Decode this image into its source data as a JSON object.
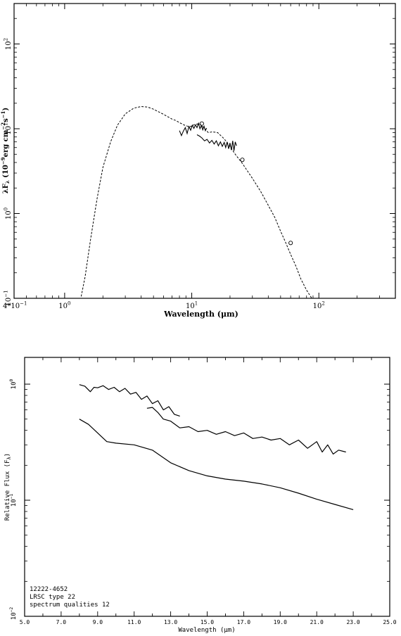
{
  "chart_data": [
    {
      "type": "line",
      "xlabel": "Wavelength (μm)",
      "ylabel": "λF",
      "ylabel_sub": "λ",
      "ylabel_rest": "(10",
      "ylabel_exp": "−9",
      "ylabel_rest2": "erg cm",
      "ylabel_exp2": "−2",
      "ylabel_rest3": "s",
      "ylabel_exp3": "−1",
      "ylabel_close": ")",
      "x_scale": "log",
      "y_scale": "log",
      "xlim": [
        0.4,
        400
      ],
      "ylim": [
        0.1,
        300
      ],
      "x_ticks": [
        {
          "value": 0.4,
          "base": "4*10",
          "exp": "−1"
        },
        {
          "value": 1,
          "base": "10",
          "exp": "0"
        },
        {
          "value": 10,
          "base": "10",
          "exp": "1"
        },
        {
          "value": 100,
          "base": "10",
          "exp": "2"
        }
      ],
      "y_ticks": [
        {
          "value": 0.1,
          "base": "10",
          "exp": "−1"
        },
        {
          "value": 1,
          "base": "10",
          "exp": "0"
        },
        {
          "value": 10,
          "base": "10",
          "exp": "1"
        },
        {
          "value": 100,
          "base": "10",
          "exp": "2"
        }
      ],
      "series": [
        {
          "style": "dashed",
          "x": [
            1.35,
            1.45,
            1.6,
            1.8,
            2.0,
            2.3,
            2.6,
            3.0,
            3.5,
            4.0,
            4.5,
            5.0,
            5.5,
            6.0,
            6.5,
            7.0,
            7.5,
            8.0,
            8.8,
            9.6,
            10.5,
            11.5,
            12.5,
            13.5,
            14.5,
            16.0,
            18.0,
            20.0,
            22.0,
            25.0,
            30.0,
            35.0,
            40.0,
            45.0,
            50.0,
            55.0,
            60.0,
            66.0,
            72.0,
            80.0,
            88.0
          ],
          "y": [
            0.105,
            0.18,
            0.5,
            1.5,
            3.5,
            7.0,
            11.0,
            15.0,
            17.5,
            18.3,
            18.0,
            17.0,
            15.8,
            14.8,
            13.8,
            13.0,
            12.5,
            11.8,
            11.0,
            10.5,
            11.2,
            11.5,
            10.2,
            9.0,
            9.2,
            9.0,
            7.6,
            6.2,
            5.0,
            3.9,
            2.6,
            1.8,
            1.25,
            0.9,
            0.62,
            0.45,
            0.33,
            0.24,
            0.17,
            0.125,
            0.1
          ]
        },
        {
          "style": "solid",
          "x": [
            8.0,
            8.3,
            8.6,
            8.9,
            9.2,
            9.5,
            9.8,
            10.1,
            10.4,
            10.7,
            11.0,
            11.3,
            11.6,
            11.9,
            12.2,
            12.5,
            12.8,
            13.1
          ],
          "y": [
            9.5,
            8.3,
            9.4,
            10.3,
            8.8,
            10.6,
            9.6,
            11.0,
            10.1,
            11.1,
            10.3,
            11.6,
            10.0,
            10.9,
            9.7,
            10.7,
            9.5,
            10.2
          ]
        },
        {
          "style": "solid",
          "x": [
            11.0,
            11.5,
            12.0,
            12.6,
            13.2,
            13.8,
            14.4,
            15.0,
            15.6,
            16.2,
            16.8,
            17.4,
            18.0,
            18.5,
            19.0,
            19.5,
            20.0,
            20.5,
            21.0,
            21.5,
            22.0,
            22.5
          ],
          "y": [
            8.5,
            8.2,
            7.8,
            7.2,
            7.5,
            6.8,
            7.3,
            6.6,
            7.2,
            6.3,
            7.0,
            6.2,
            6.9,
            6.0,
            7.0,
            5.8,
            6.8,
            5.6,
            7.2,
            5.5,
            7.0,
            6.3
          ]
        }
      ],
      "points": [
        {
          "x": 12,
          "y": 11.5
        },
        {
          "x": 25,
          "y": 4.3
        },
        {
          "x": 60,
          "y": 0.45
        }
      ]
    },
    {
      "type": "line",
      "xlabel": "Wavelength (μm)",
      "ylabel": "Relative Flux (F",
      "ylabel_sub": "λ",
      "ylabel_close": ")",
      "x_scale": "linear",
      "y_scale": "log",
      "xlim": [
        5.0,
        25.0
      ],
      "ylim": [
        0.01,
        1.7
      ],
      "x_ticks": [
        "5.0",
        "7.0",
        "9.0",
        "11.0",
        "13.0",
        "15.0",
        "17.0",
        "19.0",
        "21.0",
        "23.0",
        "25.0"
      ],
      "y_ticks": [
        {
          "value": 0.01,
          "base": "10",
          "exp": "−2"
        },
        {
          "value": 0.1,
          "base": "10",
          "exp": "−1"
        },
        {
          "value": 1,
          "base": "10",
          "exp": "0"
        }
      ],
      "series": [
        {
          "x": [
            8.0,
            8.3,
            8.6,
            8.8,
            9.0,
            9.3,
            9.6,
            9.9,
            10.2,
            10.5,
            10.8,
            11.1,
            11.4,
            11.7,
            12.0,
            12.3,
            12.6,
            12.9,
            13.2,
            13.5
          ],
          "y": [
            0.99,
            0.96,
            0.86,
            0.94,
            0.93,
            0.97,
            0.9,
            0.94,
            0.86,
            0.92,
            0.82,
            0.85,
            0.74,
            0.79,
            0.68,
            0.72,
            0.6,
            0.64,
            0.55,
            0.53
          ]
        },
        {
          "x": [
            11.7,
            12.0,
            12.3,
            12.6,
            13.0,
            13.5,
            14.0,
            14.5,
            15.0,
            15.5,
            16.0,
            16.5,
            17.0,
            17.5,
            18.0,
            18.5,
            19.0,
            19.5,
            20.0,
            20.5,
            21.0,
            21.3,
            21.6,
            21.9,
            22.2,
            22.6
          ],
          "y": [
            0.62,
            0.63,
            0.57,
            0.5,
            0.48,
            0.42,
            0.43,
            0.39,
            0.4,
            0.37,
            0.39,
            0.36,
            0.38,
            0.34,
            0.35,
            0.33,
            0.34,
            0.3,
            0.33,
            0.28,
            0.32,
            0.26,
            0.3,
            0.25,
            0.27,
            0.26
          ]
        },
        {
          "x": [
            8.0,
            8.5,
            9.0,
            9.5,
            10.0,
            11.0,
            12.0,
            13.0,
            14.0,
            15.0,
            16.0,
            17.0,
            18.0,
            19.0,
            20.0,
            21.0,
            22.0,
            23.0
          ],
          "y": [
            0.5,
            0.45,
            0.38,
            0.32,
            0.31,
            0.3,
            0.27,
            0.21,
            0.18,
            0.162,
            0.152,
            0.146,
            0.138,
            0.128,
            0.115,
            0.102,
            0.092,
            0.083
          ]
        }
      ],
      "annotation": [
        "12222-4652",
        "LRSC type 22",
        "spectrum qualities 12"
      ]
    }
  ]
}
